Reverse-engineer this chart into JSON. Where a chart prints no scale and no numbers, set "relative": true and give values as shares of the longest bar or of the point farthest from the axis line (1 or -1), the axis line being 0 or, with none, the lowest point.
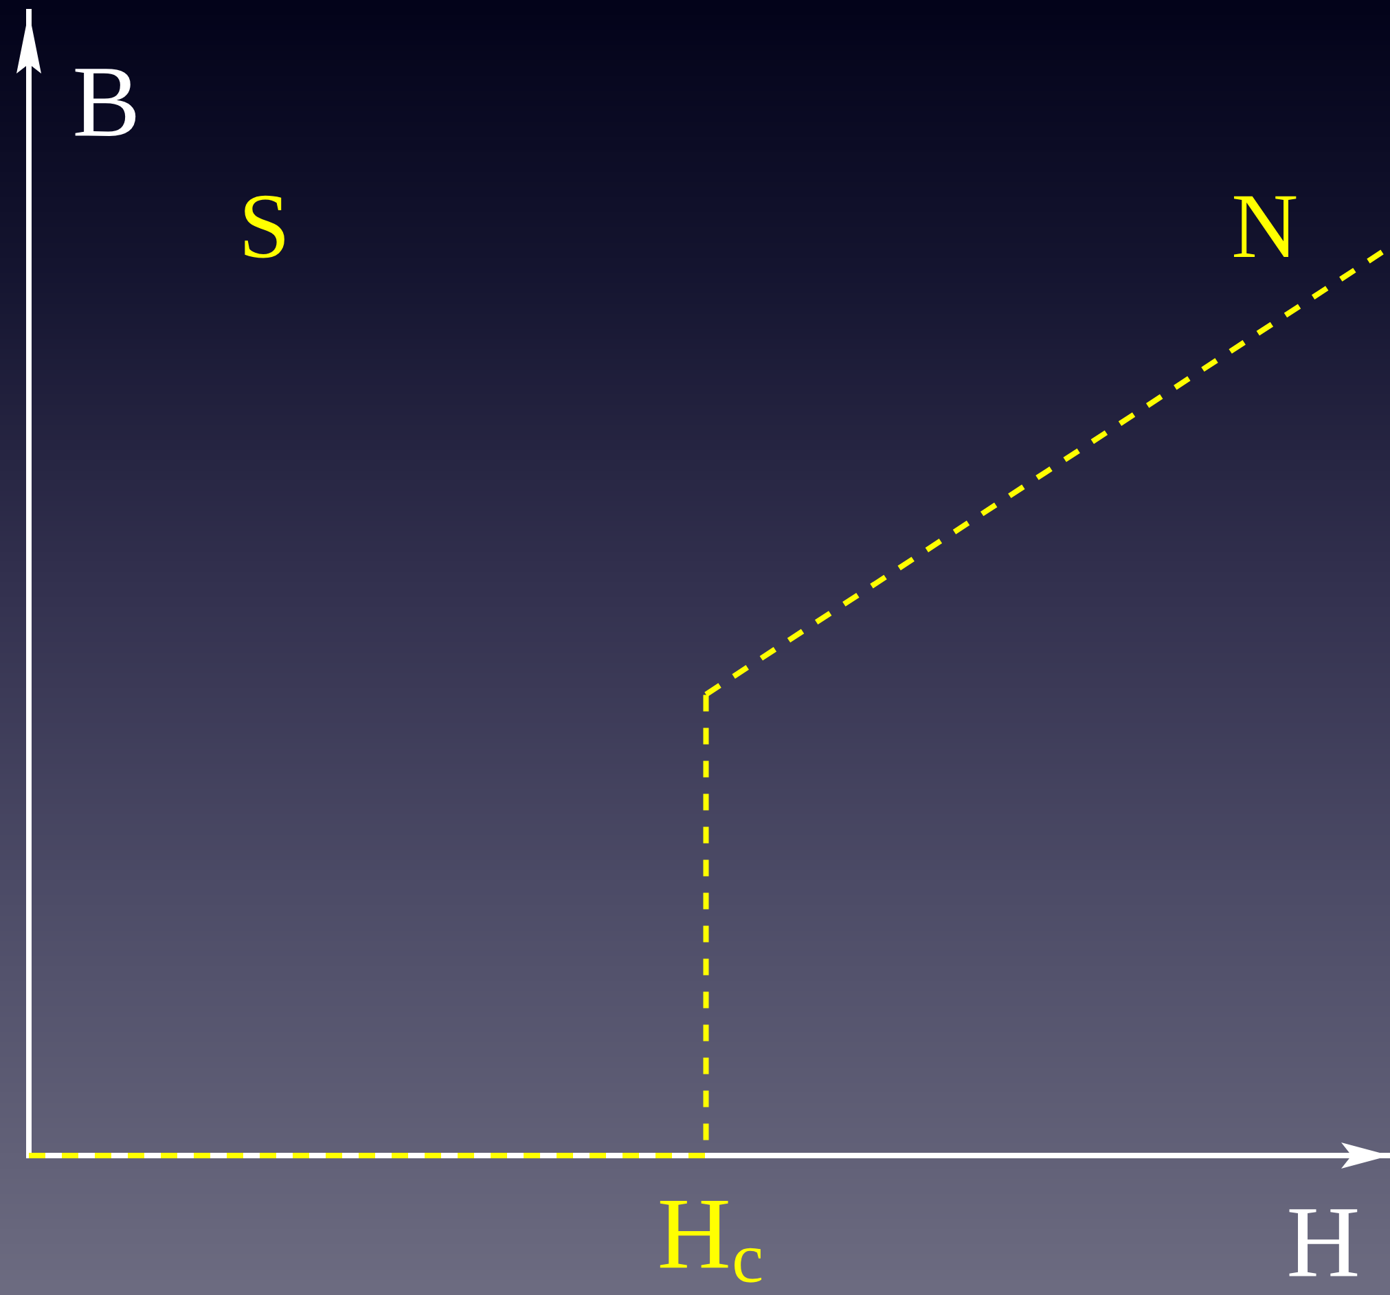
{
  "chart_data": {
    "type": "line",
    "xlabel": "H",
    "ylabel": "B",
    "annotations": [
      "S",
      "N",
      "H$_{c}$"
    ],
    "categories": [
      null,
      null,
      null
    ],
    "series": [
      {
        "type": "step",
        "color": "#ffff00",
        "values": [
          0,
          0.51,
          null
        ]
      },
      {
        "color": "#ffff00",
        "values": [
          null,
          0.51,
          1
        ]
      }
    ],
    "relative": true,
    "line_style": "dashed"
  }
}
